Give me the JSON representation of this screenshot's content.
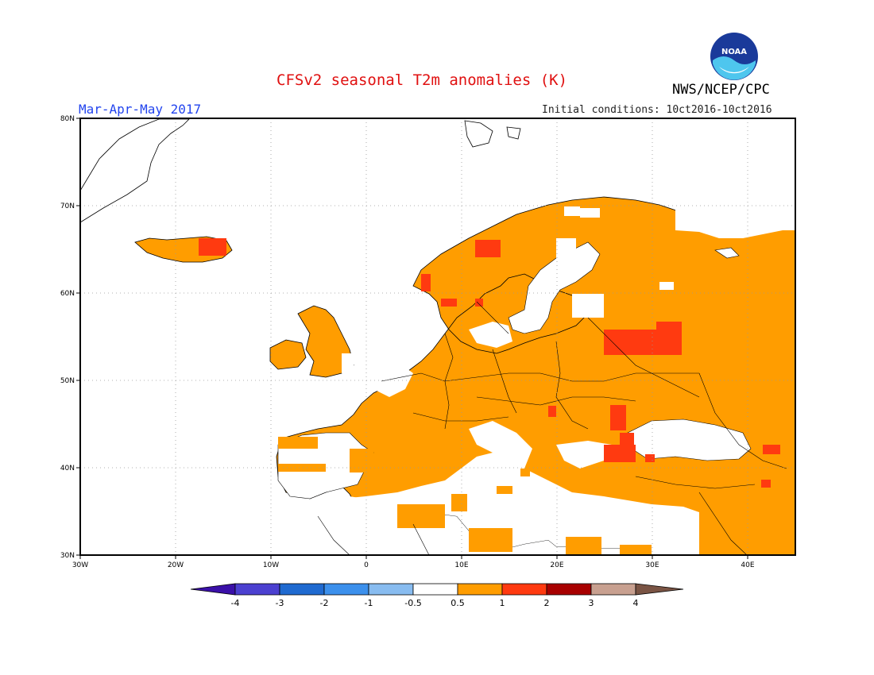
{
  "header": {
    "title": "CFSv2 seasonal T2m anomalies (K)",
    "agency": "NWS/NCEP/CPC",
    "season": "Mar-Apr-May 2017",
    "initial_conditions": "Initial conditions: 10ct2016-10ct2016",
    "logo_text": "NOAA"
  },
  "map": {
    "region": "Europe",
    "lat_labels": [
      "80N",
      "70N",
      "60N",
      "50N",
      "40N",
      "30N"
    ],
    "lon_labels": [
      "30W",
      "20W",
      "10W",
      "0",
      "10E",
      "20E",
      "30E",
      "40E"
    ]
  },
  "legend": {
    "labels": [
      "-4",
      "-3",
      "-2",
      "-1",
      "-0.5",
      "0.5",
      "1",
      "2",
      "3",
      "4"
    ],
    "colors": [
      "#3a10a8",
      "#4b40d0",
      "#1f6ad0",
      "#3c90ec",
      "#88bcf0",
      "#ffffff",
      "#ff9d00",
      "#ff3a10",
      "#a80000",
      "#c8a090",
      "#7a5444"
    ]
  },
  "colors": {
    "anomaly_0_5_to_1": "#ff9d00",
    "anomaly_1_to_2": "#ff3a10",
    "title": "#e01010",
    "season": "#2244ee"
  }
}
